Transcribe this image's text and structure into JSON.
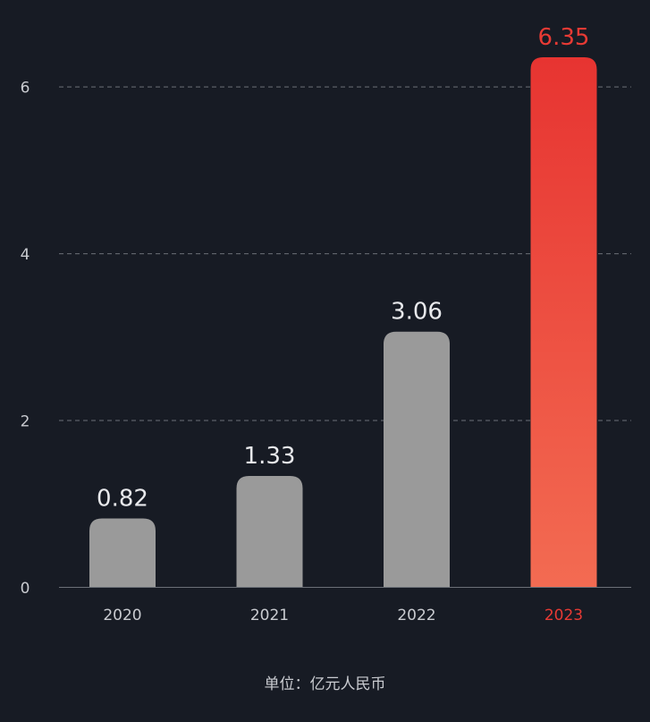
{
  "chart_data": {
    "type": "bar",
    "categories": [
      "2020",
      "2021",
      "2022",
      "2023"
    ],
    "values": [
      0.82,
      1.33,
      3.06,
      6.35
    ],
    "y_ticks": [
      "0",
      "2",
      "4",
      "6"
    ],
    "ylim": [
      0,
      6.35
    ],
    "grid": true,
    "highlight_index": 3,
    "unit_text": "单位：亿元人民币",
    "colors": {
      "background": "#171b24",
      "bar": "#9a9a9a",
      "highlight_top": "#e73431",
      "highlight_bottom": "#f36b52",
      "highlight_text": "#e73a34",
      "value_text": "#e8e9ec",
      "axis_text": "#c9cbd0",
      "grid": "#6b6f77",
      "axis": "#6b6f77"
    }
  }
}
